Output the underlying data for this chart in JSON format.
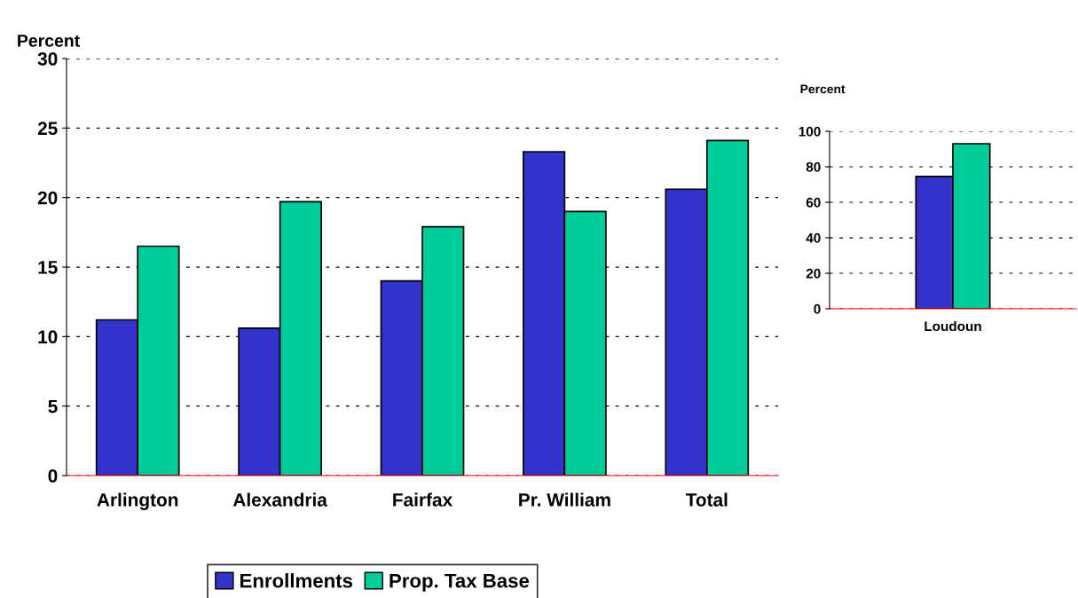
{
  "chart_data": [
    {
      "type": "bar",
      "ylabel": "Percent",
      "categories": [
        "Arlington",
        "Alexandria",
        "Fairfax",
        "Pr. William",
        "Total"
      ],
      "series": [
        {
          "name": "Enrollments",
          "color": "#3333cc",
          "values": [
            11.2,
            10.6,
            14.0,
            23.3,
            20.6
          ]
        },
        {
          "name": "Prop. Tax Base",
          "color": "#00cc99",
          "values": [
            16.5,
            19.7,
            17.9,
            19.0,
            24.1
          ]
        }
      ],
      "ylim": [
        0,
        30
      ],
      "yticks": [
        0,
        5,
        10,
        15,
        20,
        25,
        30
      ],
      "grid": "y",
      "legend": "bottom"
    },
    {
      "type": "bar",
      "ylabel": "Percent",
      "categories": [
        "Loudoun"
      ],
      "series": [
        {
          "color": "#3333cc",
          "values": [
            74.6
          ]
        },
        {
          "color": "#00cc99",
          "values": [
            93.0
          ]
        }
      ],
      "ylim": [
        0,
        100
      ],
      "yticks": [
        0,
        20,
        40,
        60,
        80,
        100
      ],
      "grid": "y"
    }
  ]
}
